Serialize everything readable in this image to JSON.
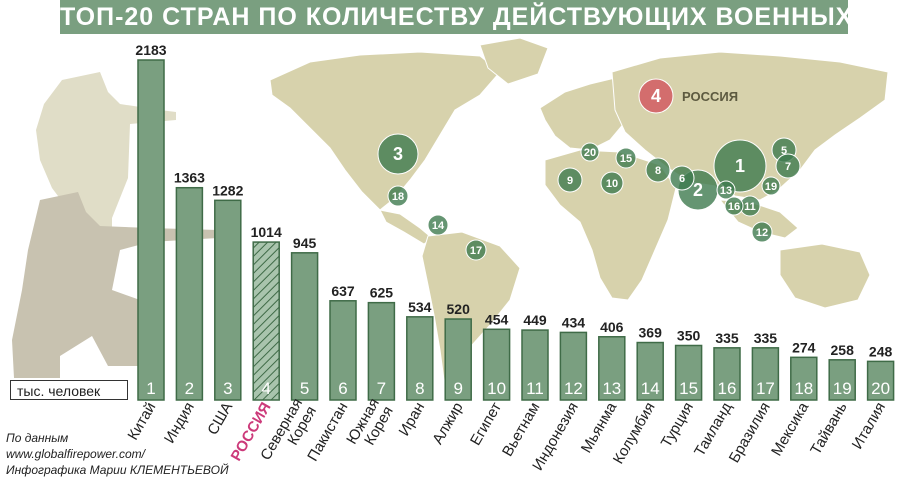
{
  "title": "ТОП-20 СТРАН ПО КОЛИЧЕСТВУ ДЕЙСТВУЮЩИХ ВОЕННЫХ",
  "unit_label": "тыс. человек",
  "source": {
    "line1": "По данным",
    "line2": "www.globalfirepower.com/",
    "line3": "Инфографика Марии КЛЕМЕНТЬЕВОЙ"
  },
  "colors": {
    "bar": "#7a9f80",
    "bar_stroke": "#3f6b47",
    "highlight": "#cc3a7a",
    "map_land": "#d7d2ac",
    "title_bg": "#7a9f80",
    "marker_green": "#3f7b4f",
    "marker_russia": "#d36d6d"
  },
  "map_markers": [
    {
      "rank": "1"
    },
    {
      "rank": "2"
    },
    {
      "rank": "3"
    },
    {
      "rank": "4",
      "label": "РОССИЯ"
    },
    {
      "rank": "5"
    },
    {
      "rank": "6"
    },
    {
      "rank": "7"
    },
    {
      "rank": "8"
    },
    {
      "rank": "9"
    },
    {
      "rank": "10"
    },
    {
      "rank": "11"
    },
    {
      "rank": "12"
    },
    {
      "rank": "13"
    },
    {
      "rank": "14"
    },
    {
      "rank": "15"
    },
    {
      "rank": "16"
    },
    {
      "rank": "17"
    },
    {
      "rank": "18"
    },
    {
      "rank": "19"
    },
    {
      "rank": "20"
    }
  ],
  "chart_data": {
    "type": "bar",
    "title": "ТОП-20 СТРАН ПО КОЛИЧЕСТВУ ДЕЙСТВУЮЩИХ ВОЕННЫХ",
    "ylabel": "тыс. человек",
    "highlight_category": "РОССИЯ",
    "ranks": [
      "1",
      "2",
      "3",
      "4",
      "5",
      "6",
      "7",
      "8",
      "9",
      "10",
      "11",
      "12",
      "13",
      "14",
      "15",
      "16",
      "17",
      "18",
      "19",
      "20"
    ],
    "categories": [
      "Китай",
      "Индия",
      "США",
      "РОССИЯ",
      "Северная Корея",
      "Пакистан",
      "Южная Корея",
      "Иран",
      "Алжир",
      "Египет",
      "Вьетнам",
      "Индонезия",
      "Мьянма",
      "Колумбия",
      "Турция",
      "Таиланд",
      "Бразилия",
      "Мексика",
      "Тайвань",
      "Италия"
    ],
    "values": [
      2183,
      1363,
      1282,
      1014,
      945,
      637,
      625,
      534,
      520,
      454,
      449,
      434,
      406,
      369,
      350,
      335,
      335,
      274,
      258,
      248
    ],
    "ylim": [
      0,
      2183
    ]
  }
}
